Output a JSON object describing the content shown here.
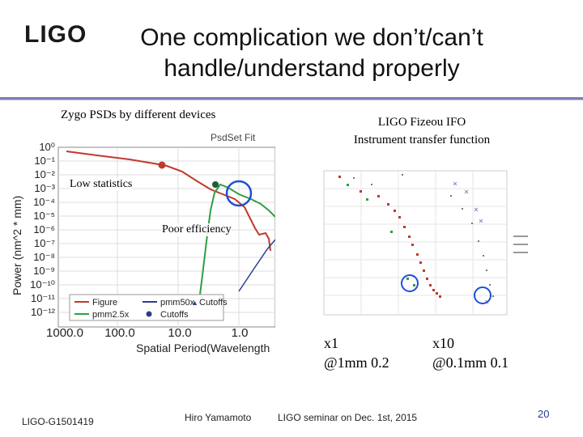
{
  "logo": "LIGO",
  "title": {
    "line1": "One complication we don’t/can’t",
    "line2": "handle/understand properly"
  },
  "left_panel": {
    "caption": "Zygo PSDs by different devices",
    "plot_title_fragment": "PsdSet Fit",
    "ylabel": "Power (nm^2 * mm)",
    "xlabel": "Spatial Period(Wavelength",
    "yticks": [
      "10⁰",
      "10⁻¹",
      "10⁻²",
      "10⁻³",
      "10⁻⁴",
      "10⁻⁵",
      "10⁻⁶",
      "10⁻⁷",
      "10⁻⁸",
      "10⁻⁹",
      "10⁻¹⁰",
      "10⁻¹¹",
      "10⁻¹²"
    ],
    "xticks": [
      "1000.0",
      "100.0",
      "10.0",
      "1.0"
    ],
    "legend": [
      "Figure",
      "pmm50x",
      "Cutoffs",
      "pmm2.5x",
      "Cutoffs"
    ],
    "annotations": [
      "Low statistics",
      "Poor efficiency"
    ],
    "colors": {
      "figure": "#c0392b",
      "pmm50x": "#2c3e8f",
      "pmm2_5x": "#2e9e44",
      "circle": "#1f4fd6"
    }
  },
  "right_panel": {
    "caption_line1": "LIGO Fizeou IFO",
    "caption_line2": "Instrument transfer function",
    "labels": [
      {
        "magnification": "x1",
        "resolution": "@1mm   0.2"
      },
      {
        "magnification": "x10",
        "resolution": "@0.1mm   0.1"
      }
    ]
  },
  "footer": {
    "doc_id": "LIGO-G1501419",
    "author": "Hiro Yamamoto",
    "seminar": "LIGO seminar on Dec. 1st, 2015",
    "page": "20"
  }
}
